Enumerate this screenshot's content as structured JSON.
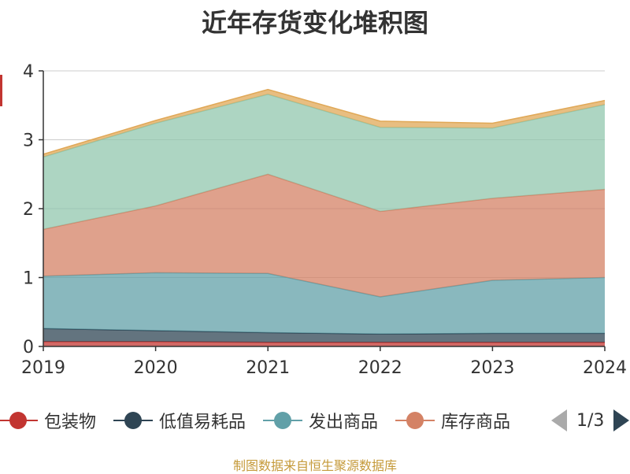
{
  "title": "近年存货变化堆积图",
  "source": "制图数据来自恒生聚源数据库",
  "legend": {
    "page": "1/3",
    "items": [
      {
        "label": "包装物",
        "color": "#c23531"
      },
      {
        "label": "低值易耗品",
        "color": "#2f4554"
      },
      {
        "label": "发出商品",
        "color": "#61a0a8"
      },
      {
        "label": "库存商品",
        "color": "#d48265"
      }
    ]
  },
  "chart_data": {
    "type": "area",
    "stacked": true,
    "title": "近年存货变化堆积图",
    "x": [
      "2019",
      "2020",
      "2021",
      "2022",
      "2023",
      "2024"
    ],
    "yticks": [
      "0",
      "1",
      "2",
      "3",
      "4"
    ],
    "ylim": [
      0,
      4
    ],
    "grid": true,
    "legend_position": "bottom",
    "series": [
      {
        "name": "包装物",
        "color": "#c23531",
        "values": [
          0.07,
          0.07,
          0.06,
          0.06,
          0.06,
          0.06
        ]
      },
      {
        "name": "低值易耗品",
        "color": "#2f4554",
        "values": [
          0.19,
          0.16,
          0.14,
          0.12,
          0.13,
          0.13
        ]
      },
      {
        "name": "发出商品",
        "color": "#61a0a8",
        "values": [
          0.76,
          0.84,
          0.86,
          0.54,
          0.77,
          0.81
        ]
      },
      {
        "name": "库存商品",
        "color": "#d48265",
        "values": [
          0.68,
          0.97,
          1.44,
          1.24,
          1.19,
          1.28
        ]
      },
      {
        "color": "#91c7ae",
        "values": [
          1.05,
          1.2,
          1.16,
          1.22,
          1.02,
          1.23
        ]
      },
      {
        "color": "#e0a857",
        "values": [
          0.04,
          0.04,
          0.07,
          0.09,
          0.07,
          0.06
        ]
      }
    ]
  }
}
